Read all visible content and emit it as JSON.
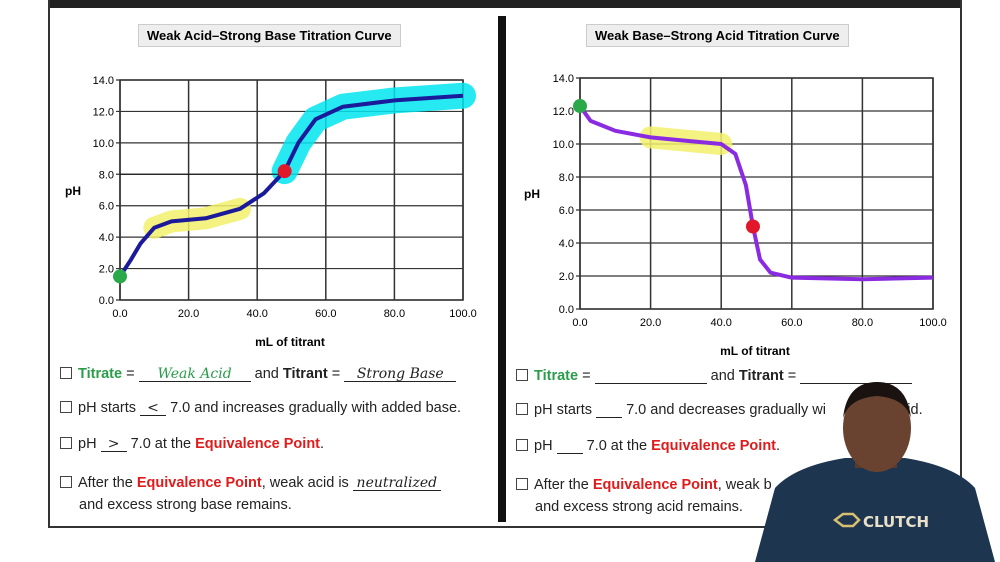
{
  "left": {
    "q1": {
      "titrate": "Titrate",
      "eq": "=",
      "and": "and",
      "titrant": "Titrant",
      "eq2": "=",
      "ans1": "Weak Acid",
      "ans2": "Strong Base"
    },
    "q2": {
      "pre": "pH starts",
      "ans": "<",
      "post": "7.0 and increases gradually with added base."
    },
    "q3": {
      "pre": "pH",
      "ans": ">",
      "post": "7.0 at the",
      "ep": "Equivalence Point",
      "end": "."
    },
    "q4": {
      "pre": "After the",
      "ep": "Equivalence Point",
      "mid": ", weak acid is",
      "ans": "neutralized",
      "line2": "and excess strong base remains."
    }
  },
  "right": {
    "q1": {
      "titrate": "Titrate",
      "eq": "=",
      "and": "and",
      "titrant": "Titrant",
      "eq2": "="
    },
    "q2": {
      "pre": "pH starts",
      "post": "7.0 and decreases gradually wi",
      "end": "acid."
    },
    "q3": {
      "pre": "pH",
      "post": "7.0 at the",
      "ep": "Equivalence Point",
      "end": "."
    },
    "q4": {
      "pre": "After the",
      "ep": "Equivalence Point",
      "mid": ", weak b",
      "line2": "and excess strong acid remains."
    }
  },
  "logo": "CLUTCH",
  "colors": {
    "curve": "#1a1a9a",
    "curve_right": "#8a2be2",
    "highlight_cyan": "#00e5f0",
    "highlight_yellow": "#f2f06a",
    "start_point": "#2aa84a",
    "equivalence_point": "#e0182a",
    "green_text": "#2a9d4a",
    "red_text": "#e01b1b"
  },
  "chart_data": [
    {
      "type": "line",
      "title": "Weak Acid–Strong Base Titration Curve",
      "xlabel": "mL of titrant",
      "ylabel": "pH",
      "xlim": [
        0,
        100
      ],
      "ylim": [
        0,
        14
      ],
      "grid": true,
      "xticks": [
        "0.0",
        "20.0",
        "40.0",
        "60.0",
        "80.0",
        "100.0"
      ],
      "yticks": [
        "0.0",
        "2.0",
        "4.0",
        "6.0",
        "8.0",
        "10.0",
        "12.0",
        "14.0"
      ],
      "x": [
        0,
        3,
        6,
        10,
        15,
        25,
        35,
        42,
        48,
        52,
        57,
        65,
        80,
        100
      ],
      "y": [
        1.5,
        2.5,
        3.6,
        4.6,
        5.0,
        5.2,
        5.8,
        6.8,
        8.2,
        10.0,
        11.5,
        12.3,
        12.7,
        13.0
      ],
      "start_point": [
        0,
        1.5
      ],
      "equivalence_point": [
        48,
        8.2
      ],
      "annotation_line": {
        "x": [
          0,
          48
        ],
        "y": 8.0
      },
      "highlights": [
        {
          "color": "yellow",
          "x": [
            10,
            37
          ]
        },
        {
          "color": "cyan",
          "x": [
            48,
            100
          ]
        }
      ]
    },
    {
      "type": "line",
      "title": "Weak Base–Strong Acid Titration Curve",
      "xlabel": "mL of titrant",
      "ylabel": "pH",
      "xlim": [
        0,
        100
      ],
      "ylim": [
        0,
        14
      ],
      "grid": true,
      "xticks": [
        "0.0",
        "20.0",
        "40.0",
        "60.0",
        "80.0",
        "100.0"
      ],
      "yticks": [
        "0.0",
        "2.0",
        "4.0",
        "6.0",
        "8.0",
        "10.0",
        "12.0",
        "14.0"
      ],
      "x": [
        0,
        3,
        10,
        20,
        30,
        40,
        44,
        47,
        49,
        51,
        54,
        60,
        80,
        100
      ],
      "y": [
        12.3,
        11.4,
        10.8,
        10.4,
        10.2,
        10.0,
        9.4,
        7.5,
        5.0,
        3.0,
        2.2,
        1.9,
        1.8,
        1.9
      ],
      "start_point": [
        0,
        12.3
      ],
      "equivalence_point": [
        49,
        5.0
      ],
      "highlights": [
        {
          "color": "yellow",
          "x": [
            18,
            40
          ]
        }
      ]
    }
  ]
}
